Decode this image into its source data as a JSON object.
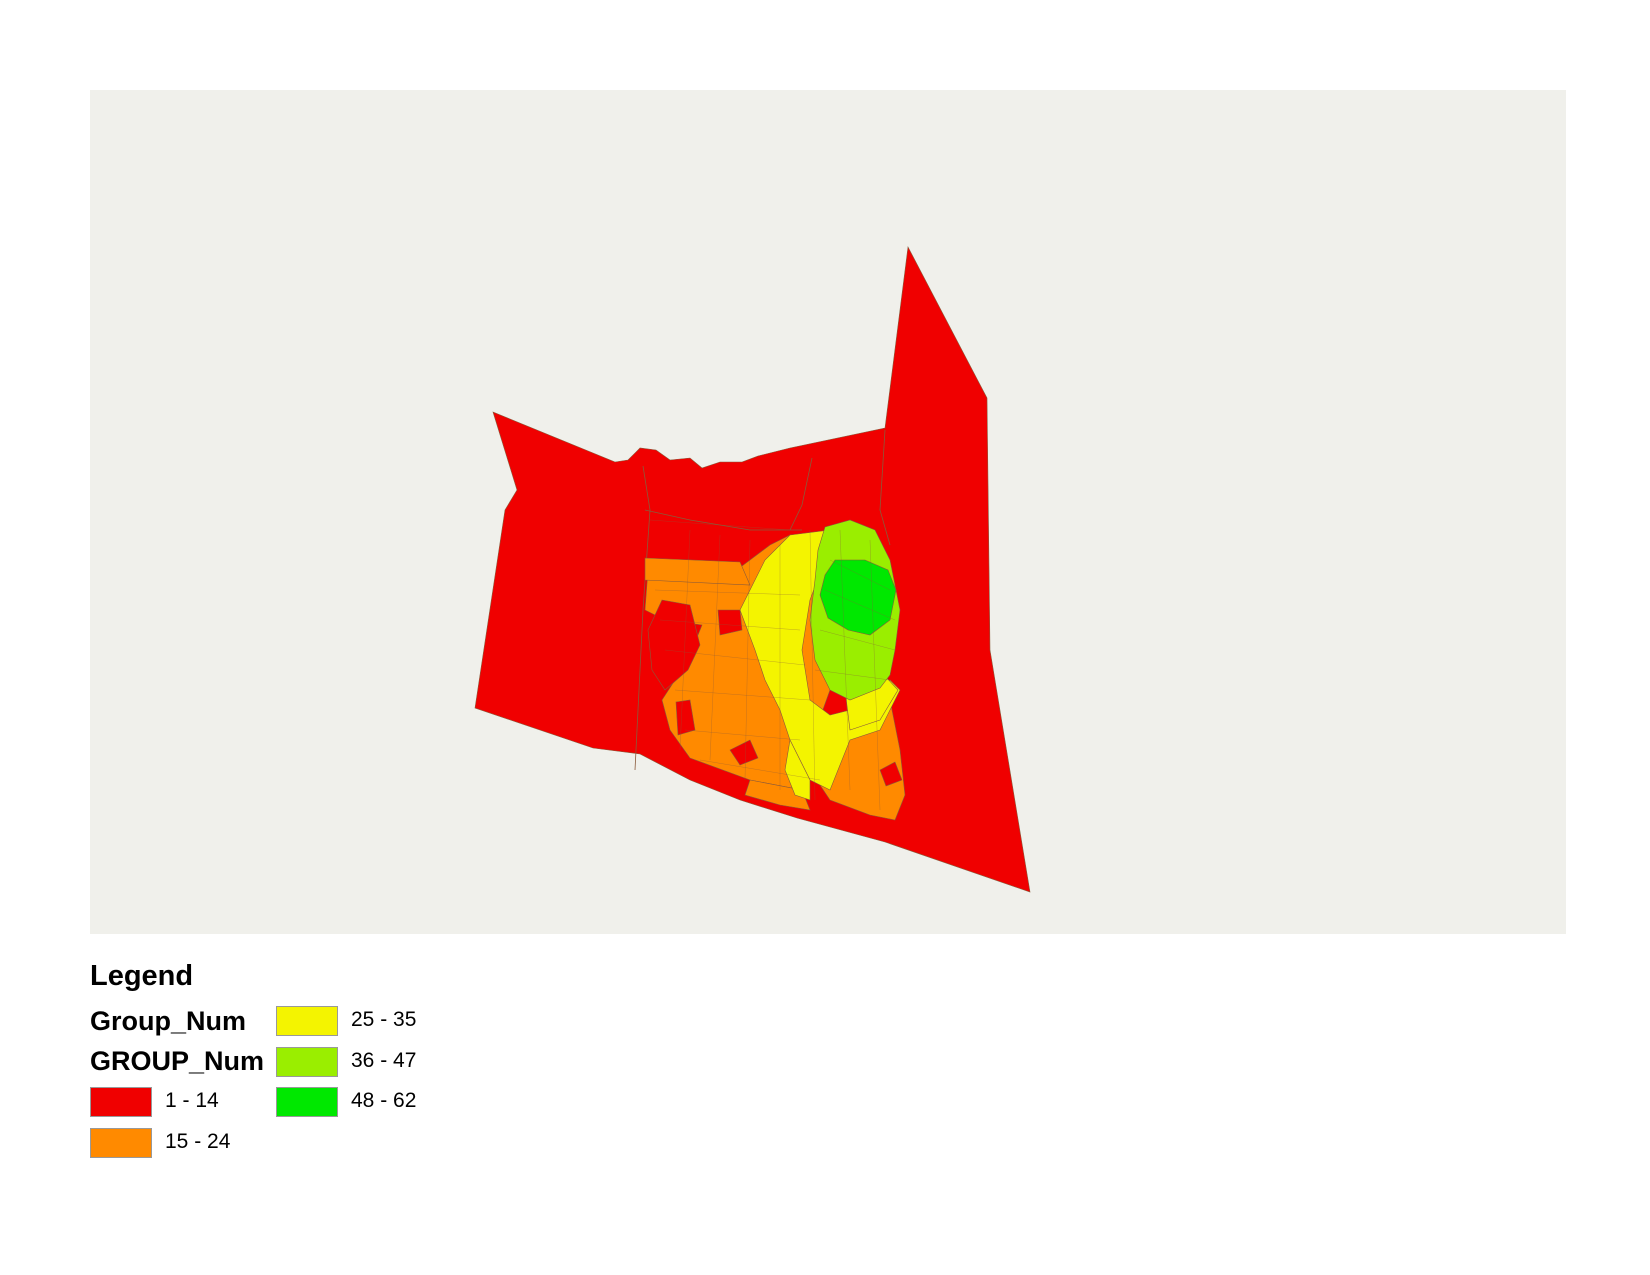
{
  "map": {
    "background_color": "#f0f0eb",
    "boundary_color": "#8a5a3a",
    "legend": {
      "title": "Legend",
      "layer_names": [
        "Group_Num",
        "GROUP_Num"
      ],
      "field": "GROUP_Num",
      "classes": [
        {
          "label": "1 - 14",
          "color": "#f00000"
        },
        {
          "label": "15 - 24",
          "color": "#ff8a00"
        },
        {
          "label": "25 - 35",
          "color": "#f4f400"
        },
        {
          "label": "36 - 47",
          "color": "#9aee00"
        },
        {
          "label": "48 - 62",
          "color": "#00e800"
        }
      ]
    }
  }
}
